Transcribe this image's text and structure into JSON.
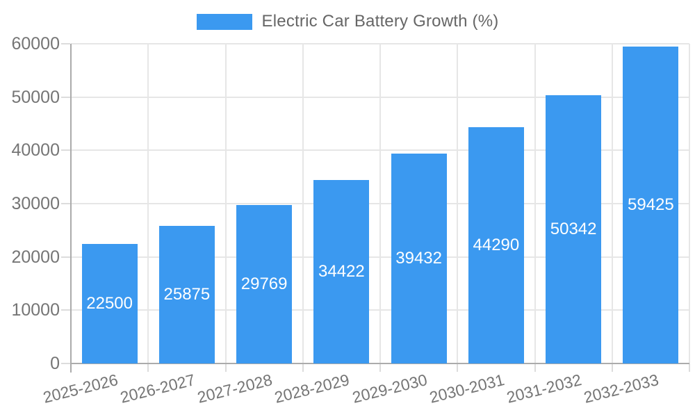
{
  "legend": {
    "series_label": "Electric Car Battery Growth (%)"
  },
  "chart_data": {
    "type": "bar",
    "title": "Electric Car Battery Growth (%)",
    "series_name": "Electric Car Battery Growth (%)",
    "categories": [
      "2025-2026",
      "2026-2027",
      "2027-2028",
      "2028-2029",
      "2029-2030",
      "2030-2031",
      "2031-2032",
      "2032-2033"
    ],
    "values": [
      22500,
      25875,
      29769,
      34422,
      39432,
      44290,
      50342,
      59425
    ],
    "value_labels": [
      "22500",
      "25875",
      "29769",
      "34422",
      "39432",
      "44290",
      "50342",
      "59425"
    ],
    "xlabel": "",
    "ylabel": "",
    "ylim": [
      0,
      60000
    ],
    "yticks": [
      0,
      10000,
      20000,
      30000,
      40000,
      50000,
      60000
    ],
    "grid": true,
    "legend_position": "top",
    "x_label_rotation_deg": -14
  },
  "colors": {
    "bar": "#3B99F0",
    "value_label": "#FFFFFF",
    "grid": "#E6E6E6",
    "axis_line": "#ABABAB",
    "tick_mark": "#DCDCDC",
    "axis_text": "#757575",
    "legend_text": "#666666",
    "background": "#FFFFFF"
  }
}
